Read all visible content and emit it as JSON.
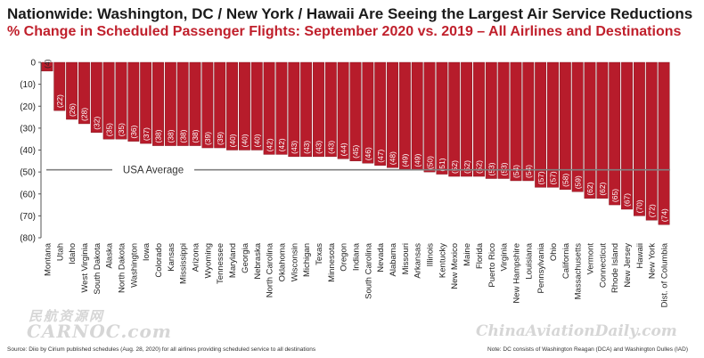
{
  "header": {
    "title": "Nationwide: Washington, DC / New York / Hawaii Are Seeing the Largest Air Service Reductions",
    "subtitle": "% Change in Scheduled Passenger Flights: September 2020 vs. 2019 – All Airlines and Destinations"
  },
  "footer": {
    "source": "Source: Diio by Cirium published schedules (Aug. 28, 2020) for all airlines providing scheduled service to all destinations",
    "note": "Note: DC consists of Washington Reagan (DCA) and Washington Dulles (IAD)"
  },
  "watermarks": {
    "carnoc_cn": "民航资源网",
    "carnoc": "CARNOC.com",
    "chinaaviationdaily": "ChinaAviationDaily.com"
  },
  "colors": {
    "bar": "#b71c2b",
    "bar_edge": "#7a0f18",
    "average_line": "#808080",
    "title": "#1a1a1a",
    "subtitle": "#c0202c"
  },
  "chart_data": {
    "type": "bar",
    "categories": [
      "Montana",
      "Utah",
      "Idaho",
      "West Virginia",
      "South Dakota",
      "Alaska",
      "North Dakota",
      "Washington",
      "Iowa",
      "Colorado",
      "Kansas",
      "Mississippi",
      "Arizona",
      "Wyoming",
      "Tennessee",
      "Maryland",
      "Georgia",
      "Nebraska",
      "North Carolina",
      "Oklahoma",
      "Wisconsin",
      "Michigan",
      "Texas",
      "Minnesota",
      "Oregon",
      "Indiana",
      "South Carolina",
      "Nevada",
      "Alabama",
      "Missouri",
      "Arkansas",
      "Illinois",
      "Kentucky",
      "New Mexico",
      "Maine",
      "Florida",
      "Puerto Rico",
      "Virginia",
      "New Hampshire",
      "Louisiana",
      "Pennsylvania",
      "Ohio",
      "California",
      "Massachusetts",
      "Vermont",
      "Connecticut",
      "Rhode Island",
      "New Jersey",
      "Hawaii",
      "New York",
      "Dist. of Columbia"
    ],
    "values": [
      -4,
      -22,
      -26,
      -28,
      -32,
      -35,
      -35,
      -36,
      -37,
      -38,
      -38,
      -38,
      -38,
      -39,
      -39,
      -40,
      -40,
      -40,
      -42,
      -42,
      -43,
      -43,
      -43,
      -43,
      -44,
      -45,
      -46,
      -47,
      -48,
      -49,
      -49,
      -50,
      -51,
      -52,
      -52,
      -52,
      -53,
      -53,
      -54,
      -54,
      -57,
      -57,
      -58,
      -59,
      -62,
      -62,
      -65,
      -67,
      -70,
      -72,
      -74
    ],
    "data_labels": [
      "(4)",
      "(22)",
      "(26)",
      "(28)",
      "(32)",
      "(35)",
      "(35)",
      "(36)",
      "(37)",
      "(38)",
      "(38)",
      "(38)",
      "(38)",
      "(39)",
      "(39)",
      "(40)",
      "(40)",
      "(40)",
      "(42)",
      "(42)",
      "(43)",
      "(43)",
      "(43)",
      "(43)",
      "(44)",
      "(45)",
      "(46)",
      "(47)",
      "(48)",
      "(49)",
      "(49)",
      "(50)",
      "(51)",
      "(52)",
      "(52)",
      "(52)",
      "(53)",
      "(53)",
      "(54)",
      "(54)",
      "(57)",
      "(57)",
      "(58)",
      "(59)",
      "(62)",
      "(62)",
      "(65)",
      "(67)",
      "(70)",
      "(72)",
      "(74)"
    ],
    "ylim": [
      -80,
      0
    ],
    "yticks": [
      0,
      -10,
      -20,
      -30,
      -40,
      -50,
      -60,
      -70,
      -80
    ],
    "ytick_labels": [
      "0",
      "(10)",
      "(20)",
      "(30)",
      "(40)",
      "(50)",
      "(60)",
      "(70)",
      "(80)"
    ],
    "reference_line": {
      "label": "USA Average",
      "value": -49
    },
    "xlabel": "",
    "ylabel": "",
    "grid": false,
    "legend": "none"
  }
}
